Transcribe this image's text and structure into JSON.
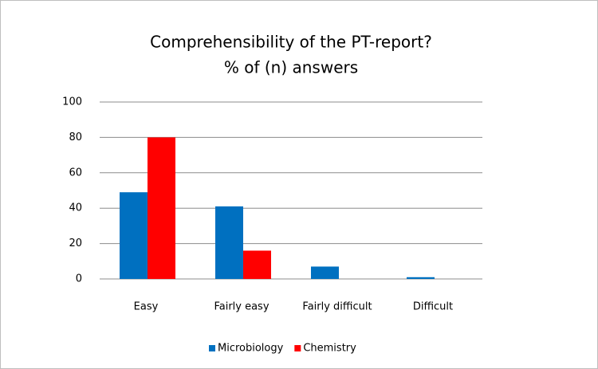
{
  "chart_data": {
    "type": "bar",
    "title": "Comprehensibility of the PT-report?",
    "subtitle": "% of  (n) answers",
    "categories": [
      "Easy",
      "Fairly easy",
      "Fairly difficult",
      "Difficult"
    ],
    "series": [
      {
        "name": "Microbiology",
        "color": "#0070c0",
        "values": [
          49,
          41,
          7,
          1
        ]
      },
      {
        "name": "Chemistry",
        "color": "#ff0000",
        "values": [
          80,
          16,
          0,
          0
        ]
      }
    ],
    "ylim": [
      0,
      100
    ],
    "yticks": [
      0,
      20,
      40,
      60,
      80,
      100
    ],
    "grid": true,
    "legend": "bottom"
  }
}
